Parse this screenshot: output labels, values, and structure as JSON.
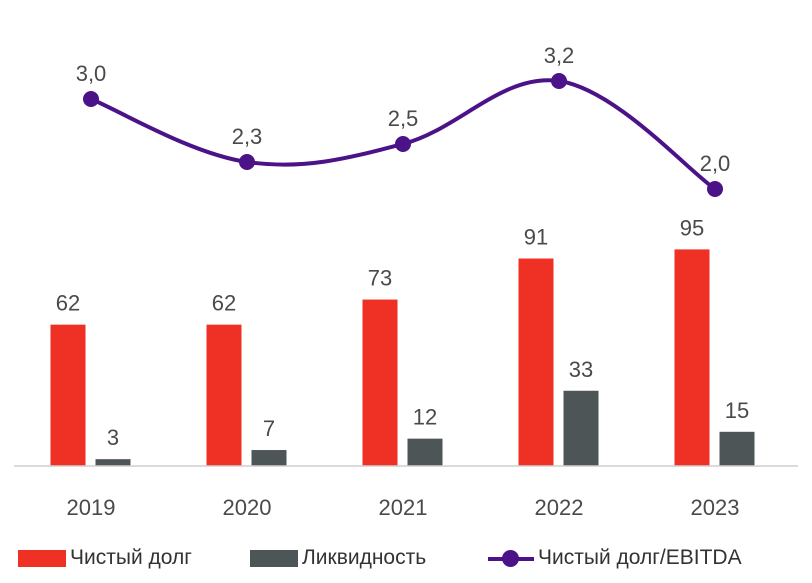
{
  "chart_data": {
    "type": "bar",
    "categories": [
      "2019",
      "2020",
      "2021",
      "2022",
      "2023"
    ],
    "series": [
      {
        "name": "Чистый долг",
        "kind": "bar",
        "color": "#ee3124",
        "values": [
          62,
          62,
          73,
          91,
          95
        ],
        "labels": [
          "62",
          "62",
          "73",
          "91",
          "95"
        ]
      },
      {
        "name": "Ликвидность",
        "kind": "bar",
        "color": "#4d5557",
        "values": [
          3,
          7,
          12,
          33,
          15
        ],
        "labels": [
          "3",
          "7",
          "12",
          "33",
          "15"
        ]
      },
      {
        "name": "Чистый долг/EBITDA",
        "kind": "line",
        "color": "#4b1387",
        "values": [
          3.0,
          2.3,
          2.5,
          3.2,
          2.0
        ],
        "labels": [
          "3,0",
          "2,3",
          "2,5",
          "3,2",
          "2,0"
        ]
      }
    ],
    "legend_position": "bottom",
    "grid": false
  }
}
